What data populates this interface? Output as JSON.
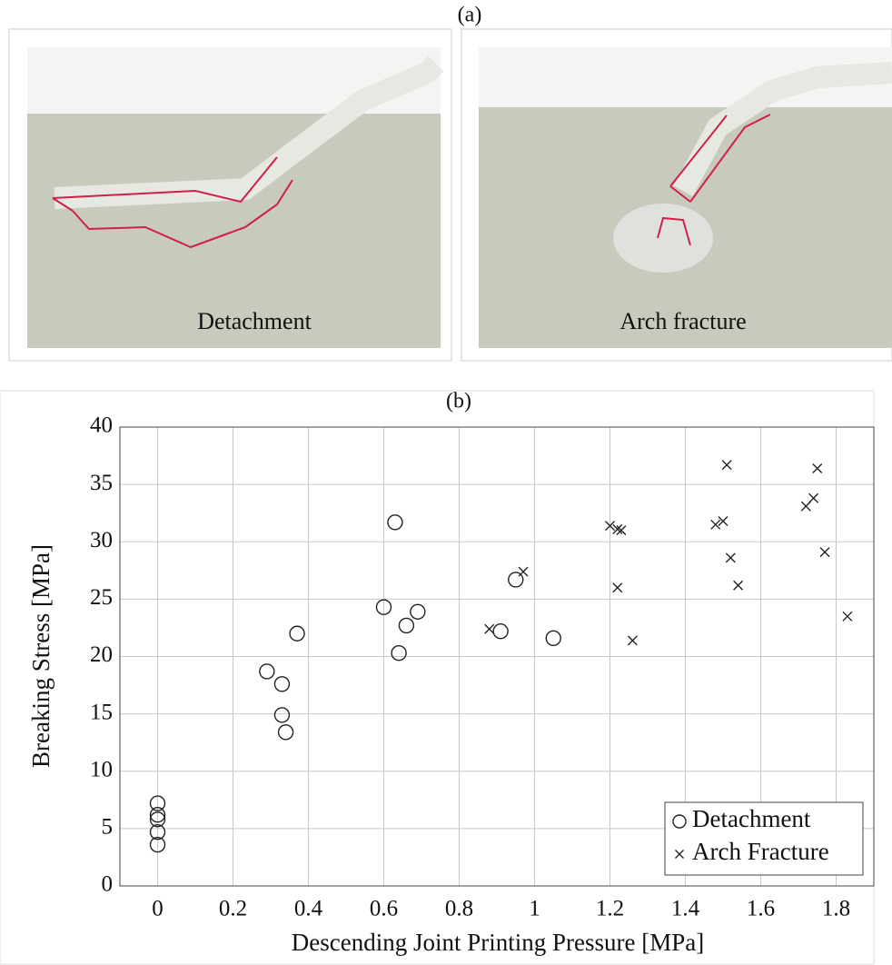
{
  "panel_a": {
    "label": "(a)",
    "photos": [
      {
        "label": "Detachment"
      },
      {
        "label": "Arch fracture"
      }
    ]
  },
  "chart_data": {
    "type": "scatter",
    "title": "(b)",
    "x_label": "Descending Joint Printing Pressure [MPa]",
    "y_label": "Breaking Stress [MPa]",
    "xlim": [
      -0.1,
      1.9
    ],
    "ylim": [
      0,
      40
    ],
    "xticks": [
      0,
      0.2,
      0.4,
      0.6,
      0.8,
      1,
      1.2,
      1.4,
      1.6,
      1.8
    ],
    "yticks": [
      0,
      5,
      10,
      15,
      20,
      25,
      30,
      35,
      40
    ],
    "grid": true,
    "legend": "lower right",
    "series": [
      {
        "name": "Detachment",
        "color": "#222222",
        "marker": "circle",
        "x": [
          0,
          0,
          0,
          0,
          0,
          0.29,
          0.33,
          0.33,
          0.34,
          0.37,
          0.6,
          0.63,
          0.64,
          0.66,
          0.69,
          0.91,
          0.95,
          1.05
        ],
        "values": [
          7.2,
          6.2,
          5.8,
          4.7,
          3.6,
          18.7,
          17.6,
          14.9,
          13.4,
          22.0,
          24.3,
          31.7,
          20.3,
          22.7,
          23.9,
          22.2,
          26.7,
          21.6
        ]
      },
      {
        "name": "Arch Fracture",
        "color": "#222222",
        "marker": "x",
        "x": [
          0.88,
          0.97,
          1.2,
          1.22,
          1.23,
          1.22,
          1.26,
          1.48,
          1.5,
          1.51,
          1.52,
          1.54,
          1.72,
          1.74,
          1.75,
          1.77,
          1.83
        ],
        "values": [
          22.4,
          27.4,
          31.4,
          31.1,
          31.0,
          26.0,
          21.4,
          31.5,
          31.8,
          36.7,
          28.6,
          26.2,
          33.1,
          33.8,
          36.4,
          29.1,
          23.5
        ]
      }
    ]
  }
}
